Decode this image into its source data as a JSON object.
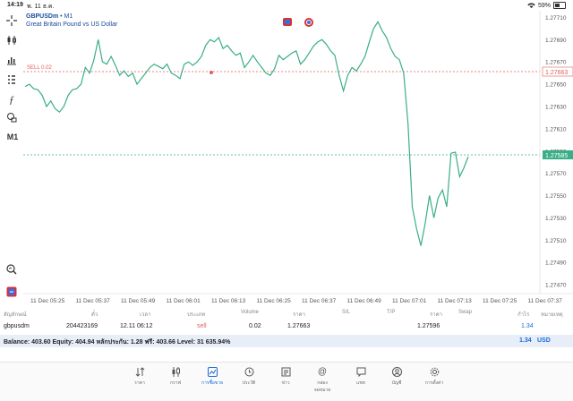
{
  "status": {
    "time": "14:19",
    "date": "พ. 11 ธ.ค.",
    "battery": "59%"
  },
  "symbol": {
    "name": "GBPUSDm",
    "sep": " • ",
    "timeframe": "M1",
    "description": "Great Britain Pound vs US Dollar"
  },
  "toolbar": {
    "timeframe_label": "M1"
  },
  "order_line": {
    "label": "SELL 0.02",
    "price": "1.27663"
  },
  "current_price": "1.27585",
  "axis": {
    "y_ticks": [
      "1.27710",
      "1.27690",
      "1.27670",
      "1.27650",
      "1.27630",
      "1.27610",
      "1.27590",
      "1.27570",
      "1.27550",
      "1.27530",
      "1.27510",
      "1.27490",
      "1.27470"
    ],
    "x_ticks": [
      "11 Dec 05:25",
      "11 Dec 05:37",
      "11 Dec 05:49",
      "11 Dec 06:01",
      "11 Dec 06:13",
      "11 Dec 06:25",
      "11 Dec 06:37",
      "11 Dec 06:49",
      "11 Dec 07:01",
      "11 Dec 07:13",
      "11 Dec 07:25",
      "11 Dec 07:37"
    ]
  },
  "chart_data": {
    "type": "line",
    "ylim": [
      1.27462,
      1.27716
    ],
    "x_range": [
      0,
      120
    ],
    "values": [
      1.27648,
      1.2765,
      1.27646,
      1.27645,
      1.2764,
      1.2763,
      1.27635,
      1.27628,
      1.27625,
      1.2763,
      1.2764,
      1.27645,
      1.27646,
      1.2765,
      1.27665,
      1.2766,
      1.27672,
      1.2769,
      1.2767,
      1.27668,
      1.27675,
      1.27667,
      1.27658,
      1.27662,
      1.27657,
      1.2766,
      1.2765,
      1.27655,
      1.2766,
      1.27665,
      1.27668,
      1.27666,
      1.27664,
      1.27668,
      1.2766,
      1.27658,
      1.27655,
      1.27668,
      1.2767,
      1.27667,
      1.2767,
      1.27675,
      1.27685,
      1.2769,
      1.27688,
      1.27692,
      1.27682,
      1.27685,
      1.2768,
      1.27676,
      1.27678,
      1.27665,
      1.2767,
      1.27676,
      1.2767,
      1.27665,
      1.2766,
      1.27658,
      1.27664,
      1.27676,
      1.27672,
      1.27675,
      1.27678,
      1.2768,
      1.27668,
      1.27672,
      1.27678,
      1.27684,
      1.27688,
      1.2769,
      1.27686,
      1.2768,
      1.27676,
      1.27658,
      1.27644,
      1.27658,
      1.27665,
      1.27662,
      1.27668,
      1.27675,
      1.27688,
      1.277,
      1.27706,
      1.27698,
      1.27692,
      1.27682,
      1.27675,
      1.27672,
      1.2766,
      1.27615,
      1.2754,
      1.2752,
      1.27505,
      1.27525,
      1.2755,
      1.2753,
      1.27548,
      1.27555,
      1.2754,
      1.27588,
      1.27589,
      1.27567,
      1.27575,
      1.27585
    ]
  },
  "table": {
    "headers": [
      "สัญลักษณ์",
      "ตั๋ว",
      "เวลา",
      "ประเภท",
      "Volume",
      "ราคา",
      "S/L",
      "T/P",
      "ราคา",
      "Swap",
      "กำไร",
      "หมายเหตุ"
    ],
    "row": {
      "symbol": "gbpusdm",
      "ticket": "204423169",
      "time": "12.11 06:12",
      "type": "sell",
      "volume": "0.02",
      "open_price": "1.27663",
      "sl": "",
      "tp": "",
      "price": "1.27596",
      "swap": "",
      "profit": "1.34",
      "comment": ""
    }
  },
  "balance": {
    "text": "Balance: 403.60 Equity: 404.94 หลักประกัน: 1.28 ฟรี: 403.66 Level: 31 635.94%",
    "profit": "1.34",
    "currency": "USD"
  },
  "nav": [
    {
      "label": "ราคา",
      "icon": "quotes-icon"
    },
    {
      "label": "กราฟ",
      "icon": "chart-candles-icon"
    },
    {
      "label": "การซื้อขาย",
      "icon": "trade-icon"
    },
    {
      "label": "ประวัติ",
      "icon": "history-icon"
    },
    {
      "label": "ข่าว",
      "icon": "news-icon"
    },
    {
      "label": "กล่องจดหมาย",
      "icon": "mailbox-icon"
    },
    {
      "label": "แชท",
      "icon": "chat-icon"
    },
    {
      "label": "บัญชี",
      "icon": "account-icon"
    },
    {
      "label": "การตั้งค่า",
      "icon": "settings-icon"
    }
  ],
  "colors": {
    "line": "#3aae86",
    "sell_line": "#e15e5e",
    "price_line": "#3aae86",
    "active": "#1a6ad8"
  }
}
